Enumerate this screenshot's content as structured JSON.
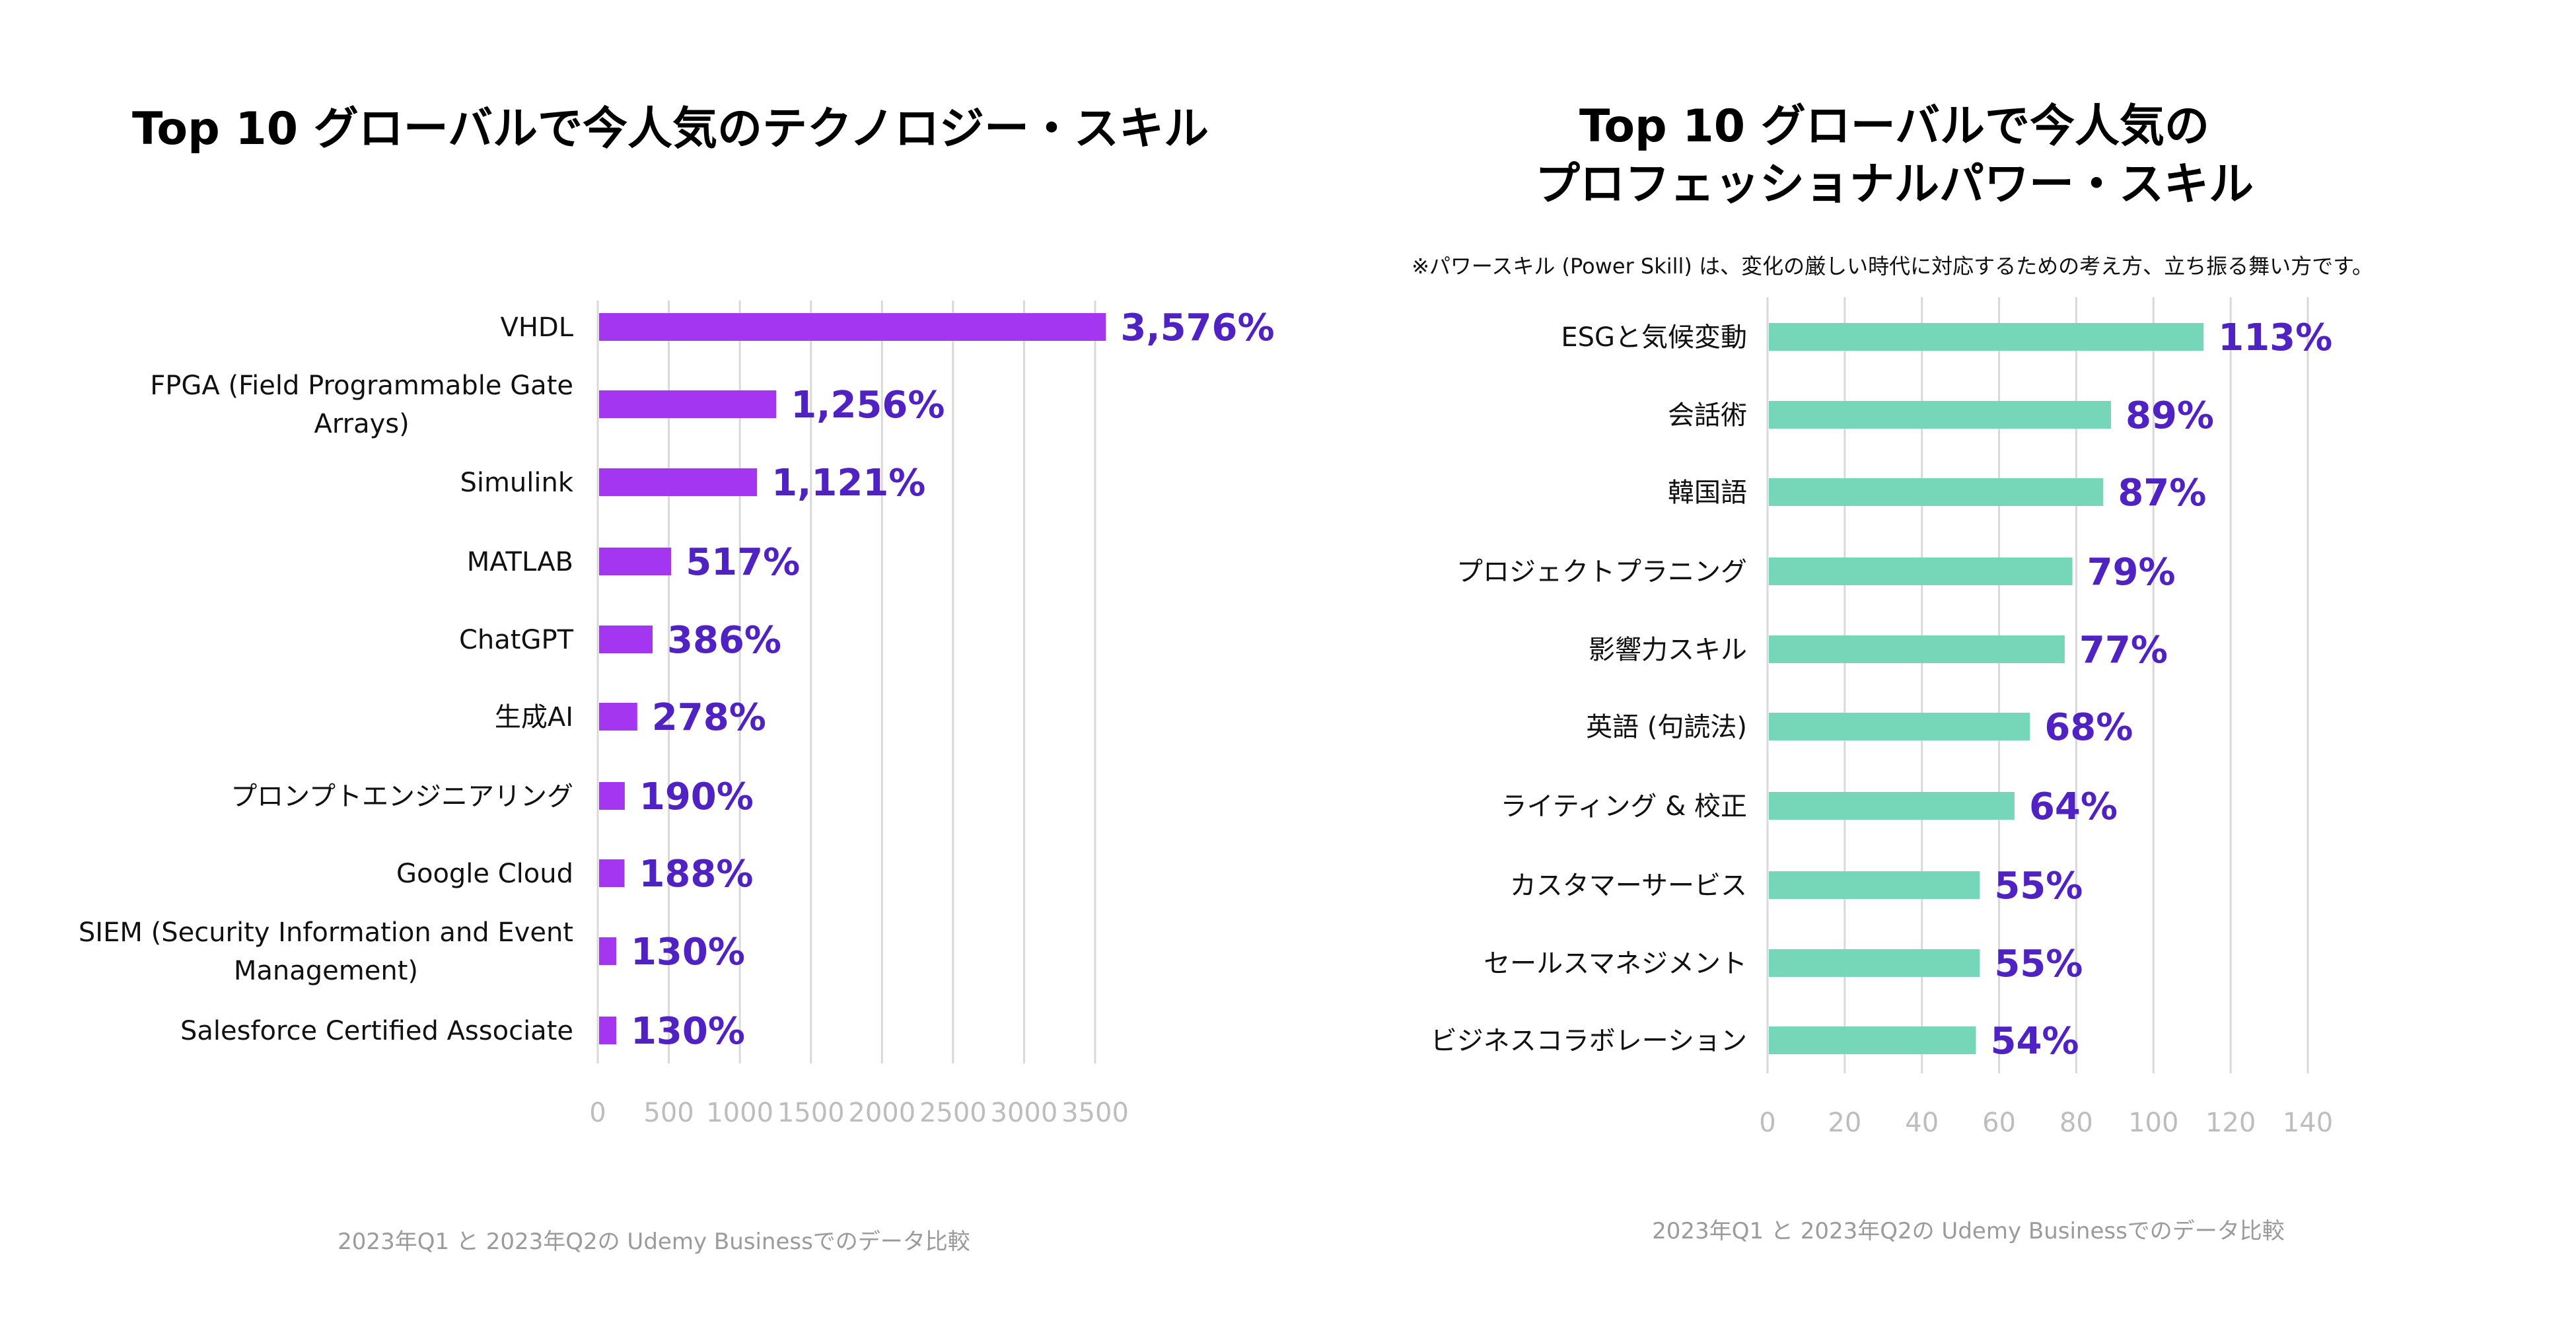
{
  "colors": {
    "tech_bar": "#a435f0",
    "power_bar": "#76d6b8",
    "value_label": "#5022c3",
    "gridline": "#d9d9d9",
    "tick_label": "#bdbdbd"
  },
  "left": {
    "title": "Top 10 グローバルで今人気のテクノロジー・スキル",
    "footer": "2023年Q1 と 2023年Q2の Udemy Businessでのデータ比較"
  },
  "right": {
    "title_line1": "Top 10 グローバルで今人気の",
    "title_line2": "プロフェッショナルパワー・スキル",
    "subtitle": "※パワースキル (Power Skill) は、変化の厳しい時代に対応するための考え方、立ち振る舞い方です。",
    "footer": "2023年Q1 と 2023年Q2の Udemy Businessでのデータ比較"
  },
  "chart_data": [
    {
      "type": "bar",
      "orientation": "horizontal",
      "title": "Top 10 グローバルで今人気のテクノロジー・スキル",
      "xlabel": "",
      "ylabel": "",
      "categories": [
        [
          "VHDL"
        ],
        [
          "FPGA (Field Programmable Gate",
          "Arrays)"
        ],
        [
          "Simulink"
        ],
        [
          "MATLAB"
        ],
        [
          "ChatGPT"
        ],
        [
          "生成AI"
        ],
        [
          "プロンプトエンジニアリング"
        ],
        [
          "Google Cloud"
        ],
        [
          "SIEM (Security Information and Event",
          "Management)"
        ],
        [
          "Salesforce Certified Associate"
        ]
      ],
      "values": [
        3576,
        1256,
        1121,
        517,
        386,
        278,
        190,
        188,
        130,
        130
      ],
      "value_labels": [
        "3,576%",
        "1,256%",
        "1,121%",
        "517%",
        "386%",
        "278%",
        "190%",
        "188%",
        "130%",
        "130%"
      ],
      "xlim": [
        0,
        3500
      ],
      "xticks": [
        0,
        500,
        1000,
        1500,
        2000,
        2500,
        3000,
        3500
      ],
      "grid": true,
      "legend": "none"
    },
    {
      "type": "bar",
      "orientation": "horizontal",
      "title": "Top 10 グローバルで今人気のプロフェッショナルパワー・スキル",
      "xlabel": "",
      "ylabel": "",
      "categories": [
        [
          "ESGと気候変動"
        ],
        [
          "会話術"
        ],
        [
          "韓国語"
        ],
        [
          "プロジェクトプラニング"
        ],
        [
          "影響力スキル"
        ],
        [
          "英語 (句読法)"
        ],
        [
          "ライティング & 校正"
        ],
        [
          "カスタマーサービス"
        ],
        [
          "セールスマネジメント"
        ],
        [
          "ビジネスコラボレーション"
        ]
      ],
      "values": [
        113,
        89,
        87,
        79,
        77,
        68,
        64,
        55,
        55,
        54
      ],
      "value_labels": [
        "113%",
        "89%",
        "87%",
        "79%",
        "77%",
        "68%",
        "64%",
        "55%",
        "55%",
        "54%"
      ],
      "xlim": [
        0,
        140
      ],
      "xticks": [
        0,
        20,
        40,
        60,
        80,
        100,
        120,
        140
      ],
      "grid": true,
      "legend": "none"
    }
  ]
}
